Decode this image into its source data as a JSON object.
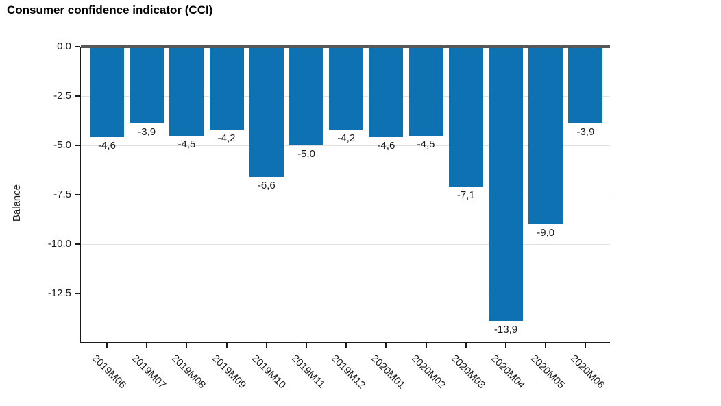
{
  "title": "Consumer confidence indicator (CCI)",
  "chart_data": {
    "type": "bar",
    "title": "Consumer confidence indicator (CCI)",
    "categories": [
      "2019M06",
      "2019M07",
      "2019M08",
      "2019M09",
      "2019M10",
      "2019M11",
      "2019M12",
      "2020M01",
      "2020M02",
      "2020M03",
      "2020M04",
      "2020M05",
      "2020M06"
    ],
    "values": [
      -4.6,
      -3.9,
      -4.5,
      -4.2,
      -6.6,
      -5.0,
      -4.2,
      -4.6,
      -4.5,
      -7.1,
      -13.9,
      -9.0,
      -3.9
    ],
    "value_labels": [
      "-4,6",
      "-3,9",
      "-4,5",
      "-4,2",
      "-6,6",
      "-5,0",
      "-4,2",
      "-4,6",
      "-4,5",
      "-7,1",
      "-13,9",
      "-9,0",
      "-3,9"
    ],
    "xlabel": "",
    "ylabel": "Balance",
    "ylim": [
      0,
      -15
    ],
    "yticks": [
      0.0,
      -2.5,
      -5.0,
      -7.5,
      -10.0,
      -12.5
    ],
    "ytick_labels": [
      "0.0",
      "-2.5",
      "-5.0",
      "-7.5",
      "-10.0",
      "-12.5"
    ],
    "grid": true,
    "legend_position": "none",
    "bar_color": "#0e72b2",
    "zero_line_color": "#58585a",
    "gridline_color": "#e1e1e1",
    "axis_color": "#1a1a1a",
    "xtick_label_rotation_deg": 45
  }
}
